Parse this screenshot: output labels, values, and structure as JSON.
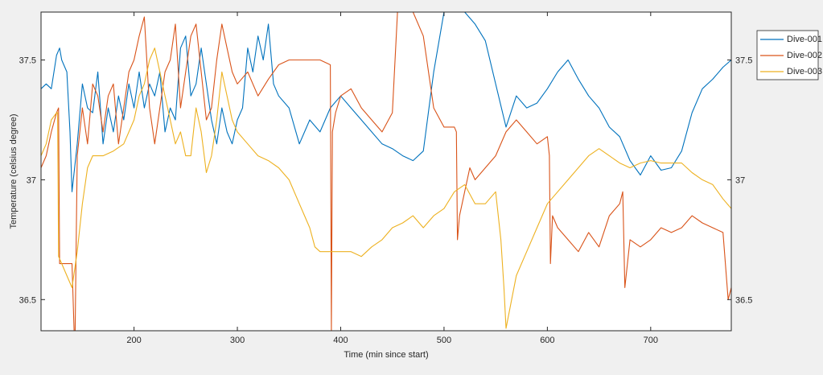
{
  "chart_data": {
    "type": "line",
    "title": "",
    "xlabel": "Time (min since start)",
    "ylabel": "Temperature (celsius degree)",
    "xlim": [
      110,
      778
    ],
    "ylim": [
      36.37,
      37.7
    ],
    "x_ticks": [
      "200",
      "300",
      "400",
      "500",
      "600",
      "700"
    ],
    "y_ticks": [
      "36.5",
      "37",
      "37.5"
    ],
    "right_y_ticks": [
      "36.5",
      "37",
      "37.5"
    ],
    "grid": false,
    "legend_position": "top-right, outside plot",
    "series": [
      {
        "name": "Dive-001",
        "color": "#0072BD",
        "x": [
          110,
          115,
          120,
          125,
          128,
          130,
          135,
          138,
          140,
          145,
          150,
          155,
          160,
          165,
          170,
          175,
          180,
          185,
          190,
          195,
          200,
          205,
          210,
          215,
          220,
          225,
          230,
          235,
          240,
          245,
          250,
          255,
          260,
          265,
          270,
          275,
          280,
          285,
          290,
          295,
          300,
          305,
          310,
          315,
          320,
          325,
          330,
          335,
          340,
          350,
          360,
          370,
          380,
          390,
          400,
          410,
          420,
          430,
          440,
          450,
          460,
          470,
          480,
          490,
          500,
          505,
          510,
          515,
          520,
          530,
          540,
          550,
          560,
          570,
          580,
          590,
          600,
          610,
          620,
          630,
          640,
          650,
          660,
          670,
          680,
          690,
          700,
          710,
          720,
          730,
          740,
          750,
          760,
          770,
          778
        ],
        "values": [
          37.38,
          37.4,
          37.38,
          37.52,
          37.55,
          37.5,
          37.45,
          37.2,
          36.95,
          37.15,
          37.4,
          37.3,
          37.28,
          37.45,
          37.15,
          37.3,
          37.2,
          37.35,
          37.25,
          37.4,
          37.3,
          37.45,
          37.3,
          37.4,
          37.35,
          37.45,
          37.2,
          37.3,
          37.25,
          37.55,
          37.6,
          37.35,
          37.4,
          37.55,
          37.4,
          37.25,
          37.15,
          37.3,
          37.2,
          37.15,
          37.25,
          37.3,
          37.55,
          37.45,
          37.6,
          37.5,
          37.65,
          37.4,
          37.35,
          37.3,
          37.15,
          37.25,
          37.2,
          37.3,
          37.35,
          37.3,
          37.25,
          37.2,
          37.15,
          37.13,
          37.1,
          37.08,
          37.12,
          37.45,
          37.72,
          37.72,
          37.72,
          37.72,
          37.7,
          37.65,
          37.58,
          37.4,
          37.22,
          37.35,
          37.3,
          37.32,
          37.38,
          37.45,
          37.5,
          37.42,
          37.35,
          37.3,
          37.22,
          37.18,
          37.08,
          37.02,
          37.1,
          37.04,
          37.05,
          37.12,
          37.28,
          37.38,
          37.42,
          37.47,
          37.5
        ]
      },
      {
        "name": "Dive-002",
        "color": "#D95319",
        "x": [
          110,
          115,
          120,
          125,
          127,
          128,
          130,
          135,
          140,
          142,
          143,
          145,
          150,
          155,
          160,
          165,
          170,
          175,
          180,
          185,
          190,
          195,
          200,
          205,
          210,
          215,
          220,
          225,
          230,
          235,
          240,
          245,
          250,
          255,
          260,
          265,
          270,
          275,
          280,
          285,
          290,
          295,
          300,
          310,
          320,
          330,
          340,
          350,
          360,
          370,
          380,
          390,
          391,
          392,
          395,
          400,
          410,
          420,
          430,
          440,
          450,
          455,
          460,
          470,
          480,
          490,
          500,
          510,
          512,
          513,
          515,
          520,
          525,
          530,
          540,
          550,
          560,
          570,
          580,
          590,
          600,
          602,
          603,
          605,
          610,
          620,
          630,
          640,
          650,
          660,
          670,
          673,
          675,
          680,
          690,
          700,
          710,
          720,
          730,
          740,
          750,
          760,
          770,
          775,
          778
        ],
        "values": [
          37.05,
          37.1,
          37.2,
          37.28,
          37.3,
          36.65,
          36.65,
          36.65,
          36.65,
          36.35,
          36.35,
          37.1,
          37.3,
          37.15,
          37.4,
          37.35,
          37.2,
          37.35,
          37.4,
          37.15,
          37.3,
          37.45,
          37.5,
          37.6,
          37.68,
          37.3,
          37.15,
          37.3,
          37.45,
          37.5,
          37.65,
          37.3,
          37.45,
          37.6,
          37.65,
          37.45,
          37.25,
          37.3,
          37.5,
          37.65,
          37.55,
          37.45,
          37.4,
          37.45,
          37.35,
          37.42,
          37.48,
          37.5,
          37.5,
          37.5,
          37.5,
          37.48,
          36.35,
          37.2,
          37.28,
          37.35,
          37.38,
          37.3,
          37.25,
          37.2,
          37.28,
          37.72,
          37.72,
          37.72,
          37.6,
          37.3,
          37.22,
          37.22,
          37.2,
          36.75,
          36.85,
          36.95,
          37.05,
          37.0,
          37.05,
          37.1,
          37.2,
          37.25,
          37.2,
          37.15,
          37.18,
          37.1,
          36.65,
          36.85,
          36.8,
          36.75,
          36.7,
          36.78,
          36.72,
          36.85,
          36.9,
          36.95,
          36.55,
          36.75,
          36.72,
          36.75,
          36.8,
          36.78,
          36.8,
          36.85,
          36.82,
          36.8,
          36.78,
          36.5,
          36.55
        ]
      },
      {
        "name": "Dive-003",
        "color": "#EDB120",
        "x": [
          110,
          115,
          120,
          125,
          126,
          127,
          130,
          135,
          140,
          145,
          150,
          155,
          160,
          170,
          180,
          190,
          200,
          205,
          210,
          215,
          220,
          225,
          230,
          235,
          240,
          245,
          250,
          255,
          260,
          265,
          270,
          275,
          280,
          285,
          290,
          295,
          300,
          310,
          320,
          330,
          340,
          350,
          360,
          370,
          375,
          380,
          385,
          390,
          400,
          410,
          420,
          430,
          440,
          450,
          460,
          470,
          480,
          490,
          500,
          510,
          520,
          530,
          540,
          550,
          555,
          558,
          560,
          570,
          580,
          590,
          600,
          610,
          620,
          630,
          640,
          650,
          660,
          670,
          680,
          690,
          700,
          710,
          720,
          730,
          740,
          750,
          760,
          770,
          778
        ],
        "values": [
          37.1,
          37.15,
          37.25,
          37.28,
          37.28,
          36.68,
          36.65,
          36.6,
          36.55,
          36.7,
          36.9,
          37.05,
          37.1,
          37.1,
          37.12,
          37.15,
          37.25,
          37.35,
          37.4,
          37.5,
          37.55,
          37.45,
          37.35,
          37.25,
          37.15,
          37.2,
          37.1,
          37.1,
          37.3,
          37.2,
          37.03,
          37.1,
          37.25,
          37.45,
          37.35,
          37.25,
          37.2,
          37.15,
          37.1,
          37.08,
          37.05,
          37.0,
          36.9,
          36.8,
          36.72,
          36.7,
          36.7,
          36.7,
          36.7,
          36.7,
          36.68,
          36.72,
          36.75,
          36.8,
          36.82,
          36.85,
          36.8,
          36.85,
          36.88,
          36.95,
          36.98,
          36.9,
          36.9,
          36.95,
          36.75,
          36.55,
          36.38,
          36.6,
          36.7,
          36.8,
          36.9,
          36.95,
          37.0,
          37.05,
          37.1,
          37.13,
          37.1,
          37.07,
          37.05,
          37.07,
          37.08,
          37.07,
          37.07,
          37.07,
          37.03,
          37.0,
          36.98,
          36.92,
          36.88
        ]
      }
    ]
  }
}
